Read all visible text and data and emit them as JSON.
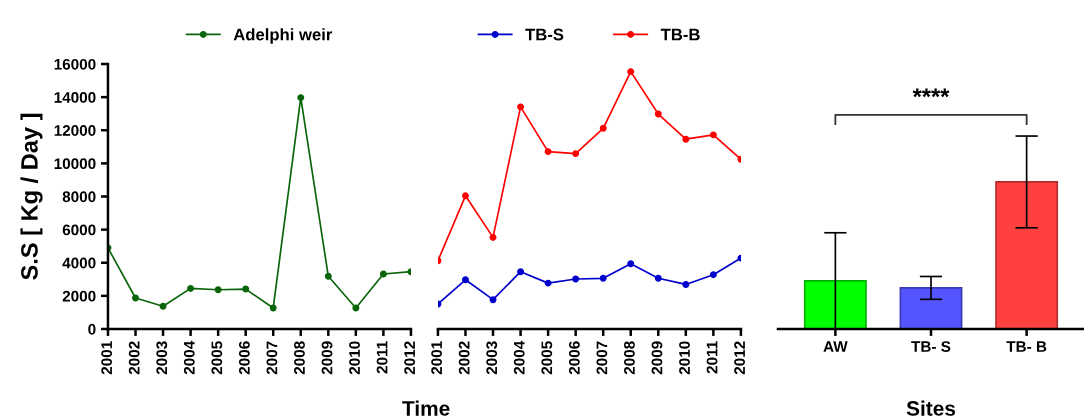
{
  "chart_data": [
    {
      "type": "line",
      "ylabel": "S.S [ Kg / Day ]",
      "xlabel": "Time",
      "categories": [
        "2001",
        "2002",
        "2003",
        "2004",
        "2005",
        "2006",
        "2007",
        "2008",
        "2009",
        "2010",
        "2011",
        "2012"
      ],
      "series": [
        {
          "name": "Adelphi weir",
          "color": "#0a650a",
          "values": [
            4900,
            1870,
            1370,
            2450,
            2370,
            2410,
            1270,
            13970,
            3180,
            1270,
            3320,
            3460
          ]
        }
      ],
      "ylim": [
        0,
        16000
      ],
      "yticks": [
        0,
        2000,
        4000,
        6000,
        8000,
        10000,
        12000,
        14000,
        16000
      ],
      "marker": "circle",
      "legend": "top",
      "grid": false
    },
    {
      "type": "line",
      "categories": [
        "2001",
        "2002",
        "2003",
        "2004",
        "2005",
        "2006",
        "2007",
        "2008",
        "2009",
        "2010",
        "2011",
        "2012"
      ],
      "series": [
        {
          "name": "TB-S",
          "color": "#0000cc",
          "values": [
            1510,
            2970,
            1770,
            3460,
            2770,
            3020,
            3060,
            3940,
            3060,
            2690,
            3280,
            4280
          ]
        },
        {
          "name": "TB-B",
          "color": "#ff0000",
          "values": [
            4120,
            8040,
            5530,
            13410,
            10710,
            10590,
            12120,
            15540,
            12980,
            11460,
            11720,
            10250
          ]
        }
      ],
      "ylim": [
        0,
        16000
      ],
      "tick_labels": "x",
      "marker": "circle",
      "legend": "top",
      "grid": false
    },
    {
      "type": "bar",
      "xlabel": "Sites",
      "categories": [
        "AW",
        "TB- S",
        "TB- B"
      ],
      "values": [
        2910,
        2480,
        8880
      ],
      "colors": [
        "#00ff00",
        "#5555ff",
        "#ff4040"
      ],
      "errors": [
        2900,
        690,
        2770
      ],
      "ylim": [
        0,
        16000
      ],
      "tick_labels": "x",
      "annotations": [
        "****"
      ],
      "grid": false
    }
  ]
}
